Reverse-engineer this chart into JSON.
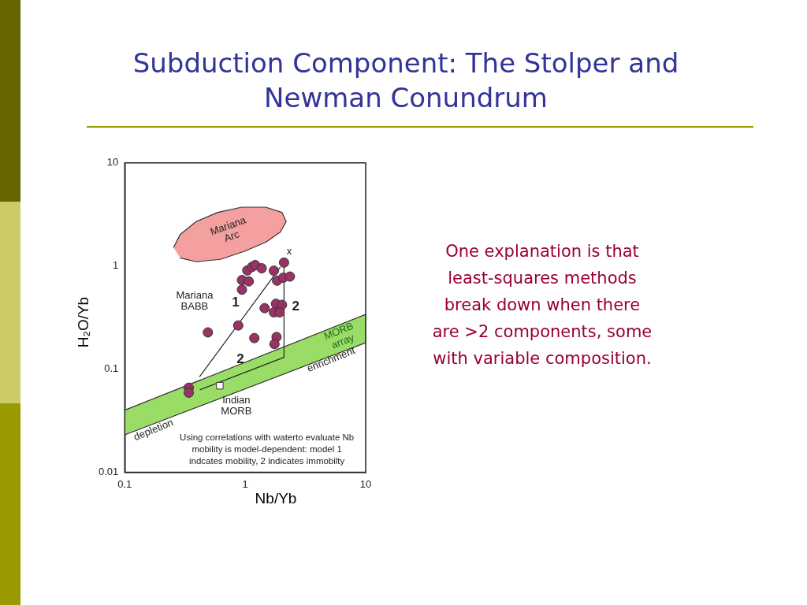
{
  "chart_data": {
    "type": "scatter",
    "title": "Subduction Component: The Stolper and Newman Conundrum",
    "xlabel": "Nb/Yb",
    "ylabel": "H₂O/Yb",
    "log": "xy",
    "xlim": [
      0.1,
      10
    ],
    "ylim": [
      0.01,
      10
    ],
    "xticks": [
      0.1,
      1,
      10
    ],
    "yticks": [
      0.01,
      0.1,
      1,
      10
    ],
    "grid": false,
    "legend": false,
    "series": [
      {
        "type": "area",
        "color": "#f4a0a0",
        "x": [
          0.254,
          0.288,
          0.392,
          0.591,
          0.936,
          1.48,
          2.02,
          2.19,
          1.96,
          1.48,
          0.985,
          0.621,
          0.392,
          0.288
        ],
        "values": [
          1.51,
          2.02,
          2.7,
          3.31,
          3.72,
          3.72,
          3.31,
          2.7,
          2.14,
          1.7,
          1.39,
          1.16,
          1.1,
          1.2
        ]
      },
      {
        "type": "area",
        "color": "#99dd66",
        "x": [
          0.1,
          10,
          10,
          0.1
        ],
        "values": [
          0.023,
          0.18,
          0.34,
          0.04
        ]
      },
      {
        "type": "line",
        "color": "#222222",
        "marker": "none",
        "x": [
          0.417,
          1.96
        ],
        "values": [
          0.084,
          0.98
        ]
      },
      {
        "type": "line",
        "color": "#222222",
        "marker": "none",
        "x": [
          0.42,
          2.1,
          2.1
        ],
        "values": [
          0.063,
          0.13,
          1.0
        ]
      },
      {
        "color": "#993366",
        "marker": "circle",
        "x": [
          2.1,
          1.04,
          1.14,
          1.21,
          1.37,
          1.73,
          0.94,
          1.07,
          0.94,
          1.84,
          2.07,
          2.35,
          1.45,
          1.8,
          2.02,
          1.73,
          1.93,
          0.875,
          0.49,
          1.19,
          1.82,
          1.75,
          0.34,
          0.34
        ],
        "values": [
          1.08,
          0.905,
          0.98,
          1.02,
          0.95,
          0.9,
          0.73,
          0.71,
          0.59,
          0.72,
          0.77,
          0.79,
          0.39,
          0.43,
          0.42,
          0.355,
          0.355,
          0.265,
          0.227,
          0.2,
          0.205,
          0.175,
          0.066,
          0.059
        ]
      },
      {
        "color": "#ffffff",
        "marker": "square",
        "x": [
          0.615
        ],
        "values": [
          0.069
        ]
      }
    ],
    "annotations": [
      "Mariana Arc",
      "x",
      "1",
      "2",
      "2",
      "Mariana BABB",
      "Indian MORB",
      "MORB array",
      "enrichment",
      "depletion",
      "Using correlations with waterto evaluate Nb mobility is model-dependent: model 1 indcates mobility, 2 indicates immobilty",
      "One explanation is that least-squares methods break down when there are >2 components, some with variable composition."
    ]
  }
}
